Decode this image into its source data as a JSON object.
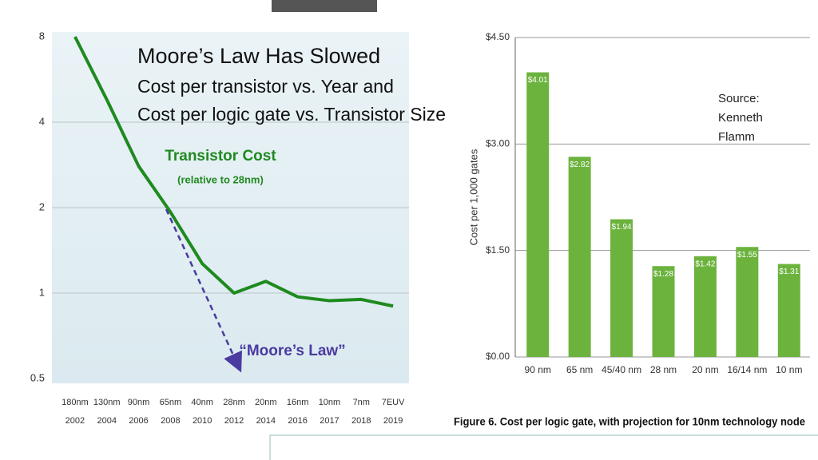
{
  "slide": {
    "title": "Moore’s Law Has Slowed",
    "subtitle_lines": [
      "Cost per transistor vs. Year and",
      "Cost per logic gate vs. Transistor Size"
    ]
  },
  "chart_data": [
    {
      "type": "line",
      "log_y": true,
      "grid": true,
      "categories": [
        [
          "180nm",
          "2002"
        ],
        [
          "130nm",
          "2004"
        ],
        [
          "90nm",
          "2006"
        ],
        [
          "65nm",
          "2008"
        ],
        [
          "40nm",
          "2010"
        ],
        [
          "28nm",
          "2012"
        ],
        [
          "20nm",
          "2014"
        ],
        [
          "16nm",
          "2016"
        ],
        [
          "10nm",
          "2017"
        ],
        [
          "7nm",
          "2018"
        ],
        [
          "7EUV",
          "2019"
        ]
      ],
      "series": [
        {
          "name": "Transistor Cost",
          "color": "#1f8a1f",
          "values": [
            8,
            4.8,
            2.8,
            1.93,
            1.27,
            1.0,
            1.1,
            0.97,
            0.94,
            0.95,
            0.9
          ]
        }
      ],
      "annotations": [
        "(relative to 28nm)",
        "“Moore’s Law”"
      ],
      "ylim": [
        0.5,
        8
      ],
      "yticks": [
        0.5,
        1,
        2,
        4,
        8
      ]
    },
    {
      "type": "bar",
      "grid": true,
      "color": "#6cb33e",
      "y_label": "Cost per 1,000 gates",
      "categories": [
        "90 nm",
        "65 nm",
        "45/40 nm",
        "28 nm",
        "20 nm",
        "16/14 nm",
        "10 nm"
      ],
      "values": [
        4.01,
        2.82,
        1.94,
        1.28,
        1.42,
        1.55,
        1.31
      ],
      "value_labels": [
        "$4.01",
        "$2.82",
        "$1.94",
        "$1.28",
        "$1.42",
        "$1.55",
        "$1.31"
      ],
      "ylim": [
        0,
        4.5
      ],
      "yticks": [
        {
          "value": 0,
          "label": "$0.00"
        },
        {
          "value": 1.5,
          "label": "$1.50"
        },
        {
          "value": 3,
          "label": "$3.00"
        },
        {
          "value": 4.5,
          "label": "$4.50"
        }
      ],
      "source_lines": [
        "Source:",
        "Kenneth",
        "Flamm"
      ],
      "caption": "Figure 6. Cost per logic gate, with projection for 10nm technology node"
    }
  ]
}
